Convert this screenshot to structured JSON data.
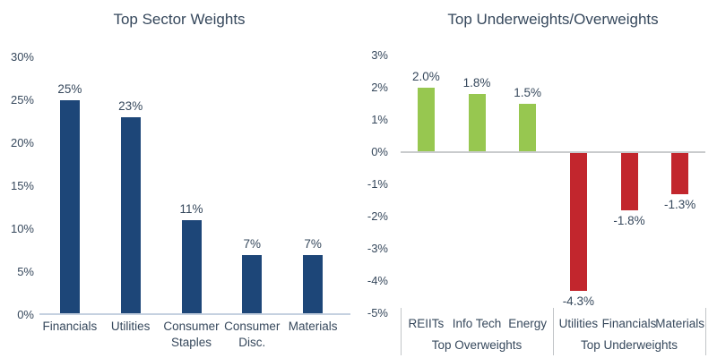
{
  "colors": {
    "text": "#36485C",
    "navy": "#1D4678",
    "green": "#97C750",
    "red": "#C2262D",
    "axis_line": "#C5D1E0",
    "zero_line": "#C9CBCD",
    "divider": "#C2C5C8"
  },
  "chart_data": [
    {
      "id": "sector-weights",
      "type": "bar",
      "title": "Top Sector Weights",
      "categories": [
        "Financials",
        "Utilities",
        "Consumer Staples",
        "Consumer Disc.",
        "Materials"
      ],
      "values": [
        25,
        23,
        11,
        7,
        7
      ],
      "value_labels": [
        "25%",
        "23%",
        "11%",
        "7%",
        "7%"
      ],
      "ylim": [
        0,
        30
      ],
      "ytick_values": [
        30,
        25,
        20,
        15,
        10,
        5,
        0
      ],
      "ytick_labels": [
        "30%",
        "25%",
        "20%",
        "15%",
        "10%",
        "5%",
        "0%"
      ],
      "bar_color": "navy",
      "grid": false,
      "legend": "none"
    },
    {
      "id": "under-over-weights",
      "type": "bar",
      "title": "Top Underweights/Overweights",
      "categories": [
        "REIITs",
        "Info Tech",
        "Energy",
        "Utilities",
        "Financials",
        "Materials"
      ],
      "values": [
        2.0,
        1.8,
        1.5,
        -4.3,
        -1.8,
        -1.3
      ],
      "value_labels": [
        "2.0%",
        "1.8%",
        "1.5%",
        "-4.3%",
        "-1.8%",
        "-1.3%"
      ],
      "ylim": [
        -5,
        3
      ],
      "ytick_values": [
        3,
        2,
        1,
        0,
        -1,
        -2,
        -3,
        -4,
        -5
      ],
      "ytick_labels": [
        "3%",
        "2%",
        "1%",
        "0%",
        "-1%",
        "-2%",
        "-3%",
        "-4%",
        "-5%"
      ],
      "positive_color": "green",
      "negative_color": "red",
      "groups": [
        {
          "label": "Top Overweights",
          "span": [
            0,
            2
          ]
        },
        {
          "label": "Top Underweights",
          "span": [
            3,
            5
          ]
        }
      ],
      "grid": false,
      "legend": "none"
    }
  ]
}
